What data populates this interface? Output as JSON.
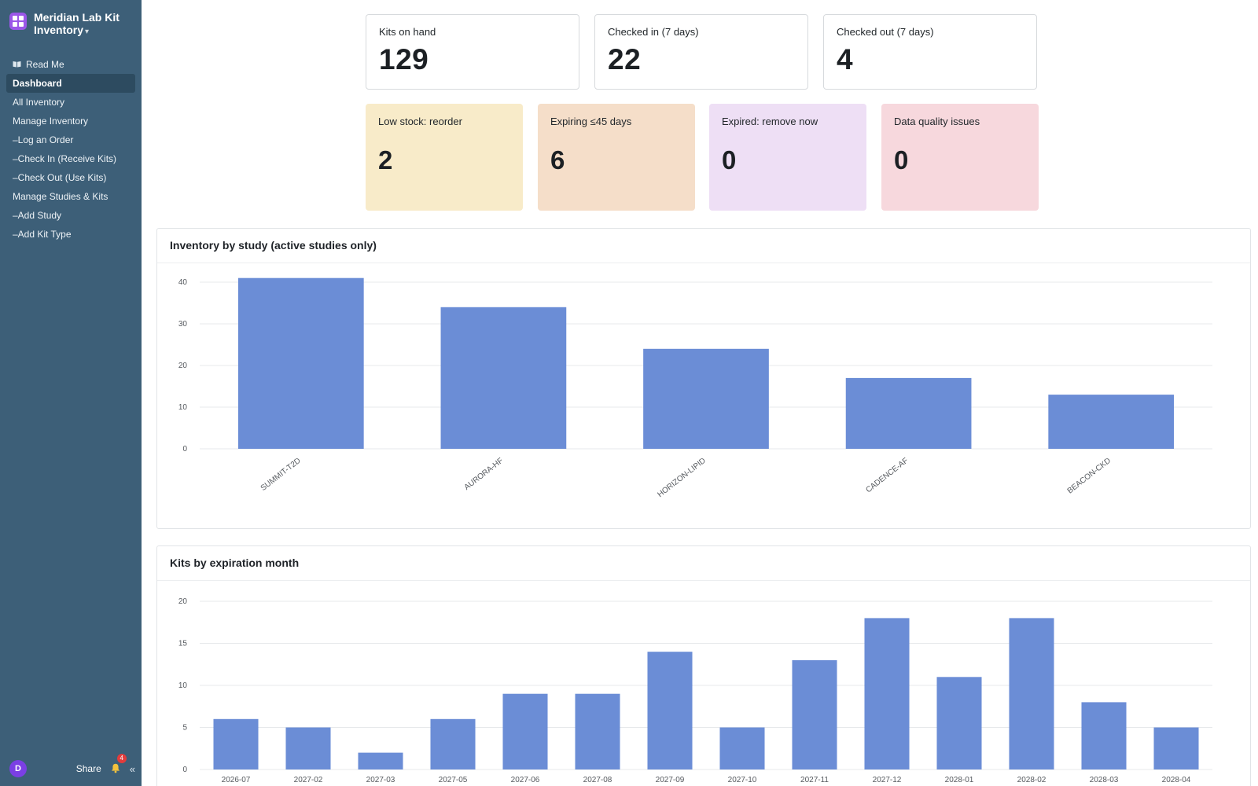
{
  "app": {
    "title": "Meridian Lab Kit Inventory",
    "caret": "▾"
  },
  "sidebar": {
    "items": [
      {
        "label": "Read Me",
        "icon": "book-icon"
      },
      {
        "label": "Dashboard",
        "active": true
      },
      {
        "label": "All Inventory"
      },
      {
        "label": "Manage Inventory"
      },
      {
        "label": "–Log an Order"
      },
      {
        "label": "–Check In (Receive Kits)"
      },
      {
        "label": "–Check Out (Use Kits)"
      },
      {
        "label": "Manage Studies & Kits"
      },
      {
        "label": "–Add Study"
      },
      {
        "label": "–Add Kit Type"
      }
    ],
    "footer": {
      "avatar_initial": "D",
      "share_label": "Share",
      "notification_count": "4",
      "collapse_glyph": "«"
    }
  },
  "kpis": [
    {
      "label": "Kits on hand",
      "value": "129"
    },
    {
      "label": "Checked in (7 days)",
      "value": "22"
    },
    {
      "label": "Checked out (7 days)",
      "value": "4"
    }
  ],
  "alerts": [
    {
      "label": "Low stock: reorder",
      "value": "2",
      "color": "#f8ebc9"
    },
    {
      "label": "Expiring ≤45 days",
      "value": "6",
      "color": "#f5dec9"
    },
    {
      "label": "Expired: remove now",
      "value": "0",
      "color": "#eedff5"
    },
    {
      "label": "Data quality issues",
      "value": "0",
      "color": "#f7d8dd"
    }
  ],
  "colors": {
    "sidebar": "#3d5f78",
    "bar": "#6b8dd6",
    "accent": "#9b57e8"
  },
  "chart_data": [
    {
      "type": "bar",
      "title": "Inventory by study (active studies only)",
      "categories": [
        "SUMMIT-T2D",
        "AURORA-HF",
        "HORIZON-LIPID",
        "CADENCE-AF",
        "BEACON-CKD"
      ],
      "values": [
        41,
        34,
        24,
        17,
        13
      ],
      "ylim": [
        0,
        40
      ],
      "yticks": [
        0,
        10,
        20,
        30,
        40
      ],
      "grid": true
    },
    {
      "type": "bar",
      "title": "Kits by expiration month",
      "categories": [
        "2026-07",
        "2027-02",
        "2027-03",
        "2027-05",
        "2027-06",
        "2027-08",
        "2027-09",
        "2027-10",
        "2027-11",
        "2027-12",
        "2028-01",
        "2028-02",
        "2028-03",
        "2028-04"
      ],
      "values": [
        6,
        5,
        2,
        6,
        9,
        9,
        14,
        5,
        13,
        18,
        11,
        18,
        8,
        5
      ],
      "ylim": [
        0,
        20
      ],
      "yticks": [
        0,
        5,
        10,
        15,
        20
      ],
      "grid": true
    }
  ]
}
